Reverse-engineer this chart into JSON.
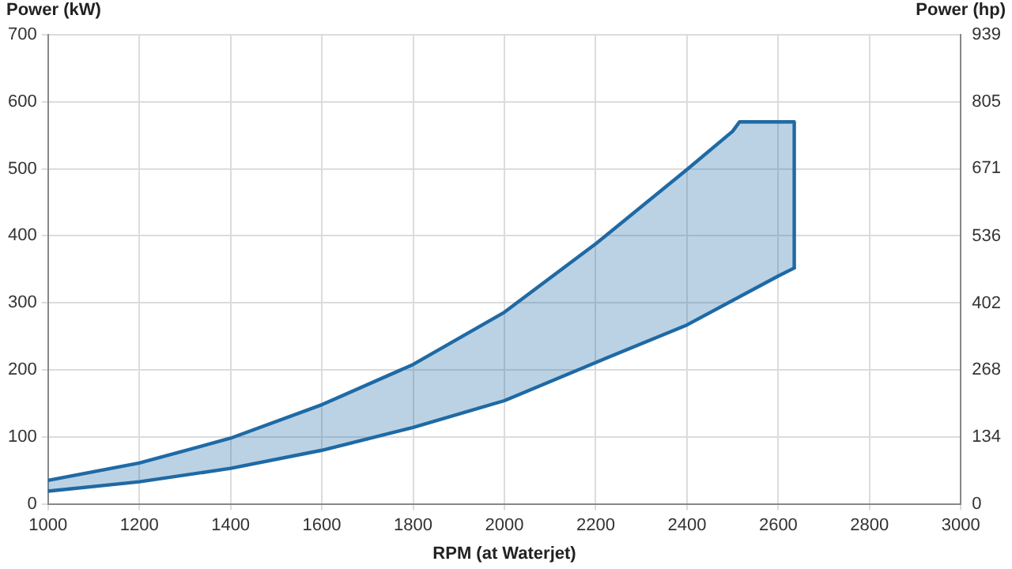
{
  "chart_data": {
    "type": "line",
    "xlabel": "RPM (at Waterjet)",
    "ylabel": "Power (kW)",
    "y2label": "Power (hp)",
    "xlim": [
      1000,
      3000
    ],
    "xticks": [
      1000,
      1200,
      1400,
      1600,
      1800,
      2000,
      2200,
      2400,
      2600,
      2800,
      3000
    ],
    "ylim": [
      0,
      700
    ],
    "yticks": [
      0,
      100,
      200,
      300,
      400,
      500,
      600,
      700
    ],
    "y2lim": [
      0,
      939
    ],
    "y2ticks": [
      0,
      134,
      268,
      402,
      536,
      671,
      805,
      939
    ],
    "grid": true,
    "legend": false,
    "marker": "none",
    "series": [
      {
        "type": "area",
        "color": "#1f6aa5",
        "x": [
          1000,
          1200,
          1400,
          1600,
          1800,
          2000,
          2200,
          2400,
          2500,
          2515,
          2600,
          2635,
          2635
        ],
        "values": [
          35,
          61,
          98,
          148,
          208,
          286,
          388,
          499,
          556,
          570,
          570,
          570,
          352
        ]
      },
      {
        "type": "line",
        "color": "#1f6aa5",
        "x": [
          1000,
          1200,
          1400,
          1600,
          1800,
          2000,
          2200,
          2400,
          2600,
          2635
        ],
        "values": [
          19,
          33,
          53,
          80,
          114,
          154,
          211,
          267,
          340,
          352
        ]
      }
    ]
  }
}
